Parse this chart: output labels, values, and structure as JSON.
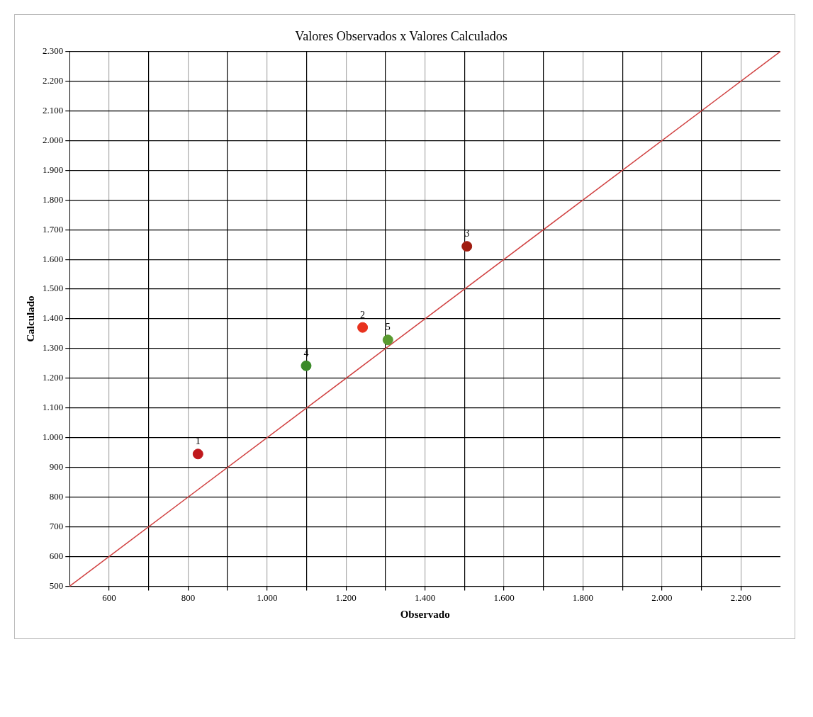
{
  "chart_data": {
    "type": "scatter",
    "title": "Valores Observados x Valores Calculados",
    "xlabel": "Observado",
    "ylabel": "Calculado",
    "xlim": [
      500,
      2300
    ],
    "ylim": [
      500,
      2300
    ],
    "xticks": [
      600,
      {
        "value": 700,
        "label": null
      },
      800,
      {
        "value": 900,
        "label": null
      },
      {
        "value": 1000,
        "label": "1.000"
      },
      {
        "value": 1100,
        "label": null
      },
      {
        "value": 1200,
        "label": "1.200"
      },
      {
        "value": 1300,
        "label": null
      },
      {
        "value": 1400,
        "label": "1.400"
      },
      {
        "value": 1500,
        "label": null
      },
      {
        "value": 1600,
        "label": "1.600"
      },
      {
        "value": 1700,
        "label": null
      },
      {
        "value": 1800,
        "label": "1.800"
      },
      {
        "value": 1900,
        "label": null
      },
      {
        "value": 2000,
        "label": "2.000"
      },
      {
        "value": 2100,
        "label": null
      },
      {
        "value": 2200,
        "label": "2.200"
      }
    ],
    "yticks": [
      500,
      600,
      700,
      800,
      900,
      {
        "value": 1000,
        "label": "1.000"
      },
      {
        "value": 1100,
        "label": "1.100"
      },
      {
        "value": 1200,
        "label": "1.200"
      },
      {
        "value": 1300,
        "label": "1.300"
      },
      {
        "value": 1400,
        "label": "1.400"
      },
      {
        "value": 1500,
        "label": "1.500"
      },
      {
        "value": 1600,
        "label": "1.600"
      },
      {
        "value": 1700,
        "label": "1.700"
      },
      {
        "value": 1800,
        "label": "1.800"
      },
      {
        "value": 1900,
        "label": "1.900"
      },
      {
        "value": 2000,
        "label": "2.000"
      },
      {
        "value": 2100,
        "label": "2.100"
      },
      {
        "value": 2200,
        "label": "2.200"
      },
      {
        "value": 2300,
        "label": "2.300"
      }
    ],
    "grid": true,
    "legend": false,
    "series": [
      {
        "type": "line",
        "color": "#d04040",
        "marker": "none",
        "x": [
          500,
          2300
        ],
        "values": [
          500,
          2300
        ]
      },
      {
        "marker": "circle",
        "x": [
          825,
          1242,
          1506,
          1099,
          1306
        ],
        "values": [
          945,
          1371,
          1644,
          1242,
          1329
        ],
        "colors": [
          "#c0181c",
          "#e8321e",
          "#a01c10",
          "#3a8a28",
          "#5a9a30"
        ]
      }
    ],
    "annotations": [
      {
        "text": "1",
        "x": 825,
        "y": 945
      },
      {
        "text": "2",
        "x": 1242,
        "y": 1371
      },
      {
        "text": "3",
        "x": 1506,
        "y": 1644
      },
      {
        "text": "4",
        "x": 1099,
        "y": 1242
      },
      {
        "text": "5",
        "x": 1306,
        "y": 1329
      }
    ]
  }
}
